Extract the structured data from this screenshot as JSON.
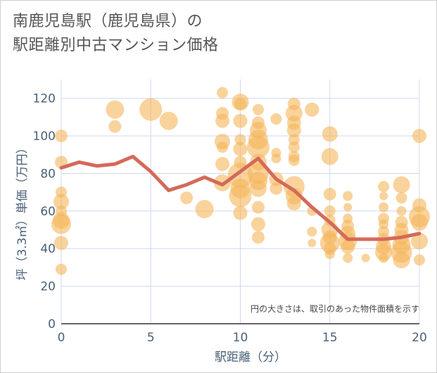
{
  "title_line1": "南鹿児島駅（鹿児島県）の",
  "title_line2": "駅距離別中古マンション価格",
  "note": "円の大きさは、取引のあった物件面積を示す",
  "colors": {
    "bubble": "#f5b65a",
    "line": "#d46a5a",
    "grid": "#cfd8ef",
    "tick": "#4a6178"
  },
  "chart_data": {
    "type": "scatter",
    "xlabel": "駅距離（分）",
    "ylabel": "坪（3.3㎡）単価（万円）",
    "xlim": [
      0,
      20
    ],
    "ylim": [
      0,
      130
    ],
    "xticks": [
      0,
      5,
      10,
      15,
      20
    ],
    "yticks": [
      0,
      20,
      40,
      60,
      80,
      100,
      120
    ],
    "bubbles": [
      {
        "x": 0,
        "y": 100,
        "s": 9
      },
      {
        "x": 0,
        "y": 86,
        "s": 9
      },
      {
        "x": 0,
        "y": 70,
        "s": 8
      },
      {
        "x": 0,
        "y": 65,
        "s": 11
      },
      {
        "x": 0,
        "y": 60,
        "s": 8
      },
      {
        "x": 0,
        "y": 55,
        "s": 12
      },
      {
        "x": 0,
        "y": 53,
        "s": 14
      },
      {
        "x": 0,
        "y": 43,
        "s": 10
      },
      {
        "x": 0,
        "y": 29,
        "s": 8
      },
      {
        "x": 3,
        "y": 114,
        "s": 13
      },
      {
        "x": 3,
        "y": 105,
        "s": 9
      },
      {
        "x": 5,
        "y": 114,
        "s": 16
      },
      {
        "x": 6,
        "y": 108,
        "s": 13
      },
      {
        "x": 7,
        "y": 67,
        "s": 9
      },
      {
        "x": 8,
        "y": 61,
        "s": 13
      },
      {
        "x": 9,
        "y": 123,
        "s": 8
      },
      {
        "x": 9,
        "y": 112,
        "s": 9
      },
      {
        "x": 9,
        "y": 108,
        "s": 10
      },
      {
        "x": 9,
        "y": 97,
        "s": 11
      },
      {
        "x": 9,
        "y": 94,
        "s": 8
      },
      {
        "x": 9,
        "y": 85,
        "s": 10
      },
      {
        "x": 9,
        "y": 75,
        "s": 12
      },
      {
        "x": 10,
        "y": 118,
        "s": 12
      },
      {
        "x": 10,
        "y": 117,
        "s": 9
      },
      {
        "x": 10,
        "y": 108,
        "s": 10
      },
      {
        "x": 10,
        "y": 98,
        "s": 8
      },
      {
        "x": 10,
        "y": 93,
        "s": 10
      },
      {
        "x": 10,
        "y": 86,
        "s": 9
      },
      {
        "x": 10,
        "y": 79,
        "s": 18
      },
      {
        "x": 10,
        "y": 72,
        "s": 14
      },
      {
        "x": 10,
        "y": 68,
        "s": 16
      },
      {
        "x": 10,
        "y": 59,
        "s": 10
      },
      {
        "x": 11,
        "y": 114,
        "s": 8
      },
      {
        "x": 11,
        "y": 107,
        "s": 9
      },
      {
        "x": 11,
        "y": 103,
        "s": 12
      },
      {
        "x": 11,
        "y": 98,
        "s": 14
      },
      {
        "x": 11,
        "y": 94,
        "s": 16
      },
      {
        "x": 11,
        "y": 86,
        "s": 12
      },
      {
        "x": 11,
        "y": 80,
        "s": 15
      },
      {
        "x": 11,
        "y": 76,
        "s": 13
      },
      {
        "x": 11,
        "y": 72,
        "s": 12
      },
      {
        "x": 11,
        "y": 62,
        "s": 9
      },
      {
        "x": 11,
        "y": 53,
        "s": 10
      },
      {
        "x": 11,
        "y": 46,
        "s": 9
      },
      {
        "x": 12,
        "y": 109,
        "s": 8
      },
      {
        "x": 12,
        "y": 91,
        "s": 7
      },
      {
        "x": 12,
        "y": 88,
        "s": 7
      },
      {
        "x": 12,
        "y": 77,
        "s": 10
      },
      {
        "x": 12,
        "y": 72,
        "s": 9
      },
      {
        "x": 13,
        "y": 117,
        "s": 9
      },
      {
        "x": 13,
        "y": 112,
        "s": 12
      },
      {
        "x": 13,
        "y": 107,
        "s": 10
      },
      {
        "x": 13,
        "y": 103,
        "s": 10
      },
      {
        "x": 13,
        "y": 98,
        "s": 8
      },
      {
        "x": 13,
        "y": 94,
        "s": 8
      },
      {
        "x": 13,
        "y": 89,
        "s": 8
      },
      {
        "x": 13,
        "y": 87,
        "s": 8
      },
      {
        "x": 13,
        "y": 73,
        "s": 15
      },
      {
        "x": 13,
        "y": 68,
        "s": 12
      },
      {
        "x": 13,
        "y": 64,
        "s": 10
      },
      {
        "x": 14,
        "y": 114,
        "s": 10
      },
      {
        "x": 14,
        "y": 60,
        "s": 7
      },
      {
        "x": 14,
        "y": 49,
        "s": 7
      },
      {
        "x": 14,
        "y": 43,
        "s": 6
      },
      {
        "x": 15,
        "y": 101,
        "s": 11
      },
      {
        "x": 15,
        "y": 89,
        "s": 12
      },
      {
        "x": 15,
        "y": 69,
        "s": 9
      },
      {
        "x": 15,
        "y": 60,
        "s": 8
      },
      {
        "x": 15,
        "y": 55,
        "s": 8
      },
      {
        "x": 15,
        "y": 50,
        "s": 12
      },
      {
        "x": 15,
        "y": 46,
        "s": 10
      },
      {
        "x": 15,
        "y": 43,
        "s": 14
      },
      {
        "x": 15,
        "y": 40,
        "s": 9
      },
      {
        "x": 15,
        "y": 37,
        "s": 7
      },
      {
        "x": 16,
        "y": 68,
        "s": 7
      },
      {
        "x": 16,
        "y": 62,
        "s": 6
      },
      {
        "x": 16,
        "y": 56,
        "s": 7
      },
      {
        "x": 16,
        "y": 52,
        "s": 9
      },
      {
        "x": 16,
        "y": 48,
        "s": 11
      },
      {
        "x": 16,
        "y": 44,
        "s": 13
      },
      {
        "x": 16,
        "y": 41,
        "s": 10
      },
      {
        "x": 16,
        "y": 35,
        "s": 7
      },
      {
        "x": 17,
        "y": 35,
        "s": 6
      },
      {
        "x": 18,
        "y": 73,
        "s": 8
      },
      {
        "x": 18,
        "y": 68,
        "s": 6
      },
      {
        "x": 18,
        "y": 62,
        "s": 7
      },
      {
        "x": 18,
        "y": 56,
        "s": 8
      },
      {
        "x": 18,
        "y": 53,
        "s": 7
      },
      {
        "x": 18,
        "y": 49,
        "s": 8
      },
      {
        "x": 18,
        "y": 45,
        "s": 9
      },
      {
        "x": 18,
        "y": 41,
        "s": 11
      },
      {
        "x": 18,
        "y": 38,
        "s": 12
      },
      {
        "x": 18,
        "y": 35,
        "s": 7
      },
      {
        "x": 19,
        "y": 74,
        "s": 12
      },
      {
        "x": 19,
        "y": 67,
        "s": 8
      },
      {
        "x": 19,
        "y": 60,
        "s": 7
      },
      {
        "x": 19,
        "y": 54,
        "s": 9
      },
      {
        "x": 19,
        "y": 50,
        "s": 10
      },
      {
        "x": 19,
        "y": 46,
        "s": 11
      },
      {
        "x": 19,
        "y": 42,
        "s": 13
      },
      {
        "x": 19,
        "y": 38,
        "s": 15
      },
      {
        "x": 19,
        "y": 34,
        "s": 12
      },
      {
        "x": 20,
        "y": 100,
        "s": 10
      },
      {
        "x": 20,
        "y": 63,
        "s": 10
      },
      {
        "x": 20,
        "y": 57,
        "s": 15
      },
      {
        "x": 20,
        "y": 54,
        "s": 12
      },
      {
        "x": 20,
        "y": 44,
        "s": 12
      },
      {
        "x": 20,
        "y": 34,
        "s": 8
      }
    ],
    "trend": {
      "x": [
        0,
        1,
        2,
        3,
        4,
        5,
        6,
        7,
        8,
        9,
        10,
        11,
        12,
        13,
        14,
        15,
        16,
        17,
        18,
        19,
        20
      ],
      "y": [
        83,
        86,
        84,
        85,
        89,
        81,
        71,
        74,
        78,
        74,
        81,
        88,
        77,
        71,
        62,
        54,
        45,
        45,
        45,
        46,
        48
      ]
    }
  }
}
